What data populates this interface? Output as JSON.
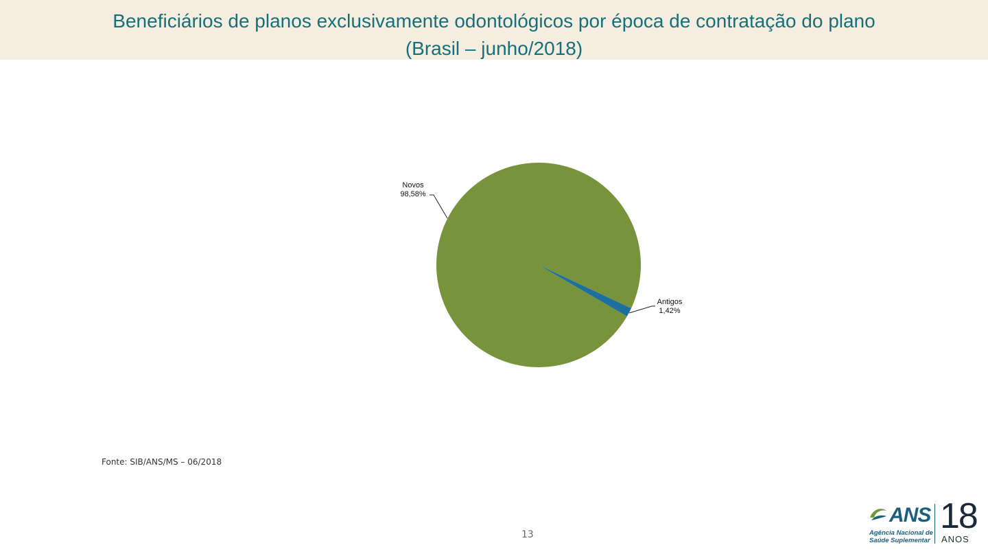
{
  "title_line1": "Beneficiários de planos exclusivamente odontológicos por época de contratação do plano",
  "title_line2": "(Brasil – junho/2018)",
  "chart_data": {
    "type": "pie",
    "slices": [
      {
        "name": "Novos",
        "value": 98.58,
        "label": "98,58%",
        "color": "#77933c"
      },
      {
        "name": "Antigos",
        "value": 1.42,
        "label": "1,42%",
        "color": "#1f6f9e"
      }
    ]
  },
  "source": "Fonte: SIB/ANS/MS – 06/2018",
  "page_number": "13",
  "logo": {
    "name": "ANS",
    "subtitle_line1": "Agência Nacional de",
    "subtitle_line2": "Saúde Suplementar",
    "years": "18",
    "years_label": "ANOS"
  }
}
